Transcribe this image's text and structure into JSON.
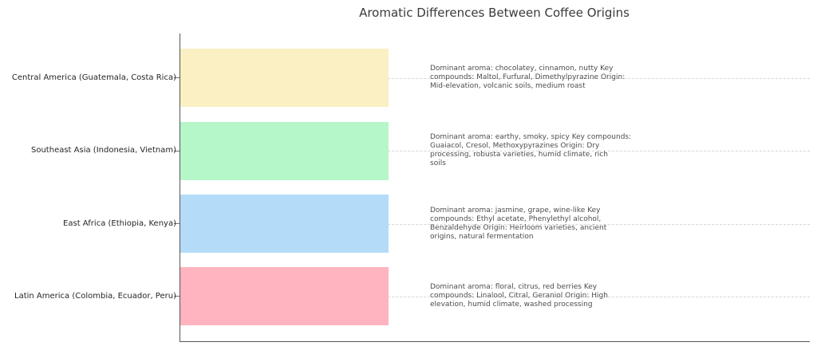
{
  "chart": {
    "title": "Aromatic Differences Between Coffee Origins",
    "rows": [
      {
        "label": "Central America (Guatemala, Costa Rica)",
        "color": "#FAF0C3",
        "annotation": "Dominant aroma: chocolatey, cinnamon, nutty Key\ncompounds: Maltol, Furfural, Dimethylpyrazine Origin:\nMid-elevation, volcanic soils, medium roast"
      },
      {
        "label": "Southeast Asia (Indonesia, Vietnam)",
        "color": "#B5F7C9",
        "annotation": "Dominant aroma: earthy, smoky, spicy Key compounds:\nGuaiacol, Cresol, Methoxypyrazines Origin: Dry\nprocessing, robusta varieties, humid climate, rich\nsoils"
      },
      {
        "label": "East Africa (Ethiopia, Kenya)",
        "color": "#B4DCF8",
        "annotation": "Dominant aroma: jasmine, grape, wine-like Key\ncompounds: Ethyl acetate, Phenylethyl alcohol,\nBenzaldehyde Origin: Heirloom varieties, ancient\norigins, natural fermentation"
      },
      {
        "label": "Latin America (Colombia, Ecuador, Peru)",
        "color": "#FFB4BF",
        "annotation": "Dominant aroma: floral, citrus, red berries Key\ncompounds: Linalool, Citral, Geraniol Origin: High\nelevation, humid climate, washed processing"
      }
    ]
  },
  "chart_data": {
    "type": "bar",
    "orientation": "horizontal",
    "title": "Aromatic Differences Between Coffee Origins",
    "categories": [
      "Central America (Guatemala, Costa Rica)",
      "Southeast Asia (Indonesia, Vietnam)",
      "East Africa (Ethiopia, Kenya)",
      "Latin America (Colombia, Ecuador, Peru)"
    ],
    "values": [
      1,
      1,
      1,
      1
    ],
    "xlabel": "",
    "ylabel": "",
    "xlim": [
      0,
      3
    ],
    "grid": "horizontal dashed gridlines at each category center",
    "legend": "none",
    "bar_colors": [
      "#FAF0C3",
      "#B5F7C9",
      "#B4DCF8",
      "#FFB4BF"
    ],
    "annotations": [
      "Dominant aroma: chocolatey, cinnamon, nutty Key compounds: Maltol, Furfural, Dimethylpyrazine Origin: Mid-elevation, volcanic soils, medium roast",
      "Dominant aroma: earthy, smoky, spicy Key compounds: Guaiacol, Cresol, Methoxypyrazines Origin: Dry processing, robusta varieties, humid climate, rich soils",
      "Dominant aroma: jasmine, grape, wine-like Key compounds: Ethyl acetate, Phenylethyl alcohol, Benzaldehyde Origin: Heirloom varieties, ancient origins, natural fermentation",
      "Dominant aroma: floral, citrus, red berries Key compounds: Linalool, Citral, Geraniol Origin: High elevation, humid climate, washed processing"
    ]
  }
}
